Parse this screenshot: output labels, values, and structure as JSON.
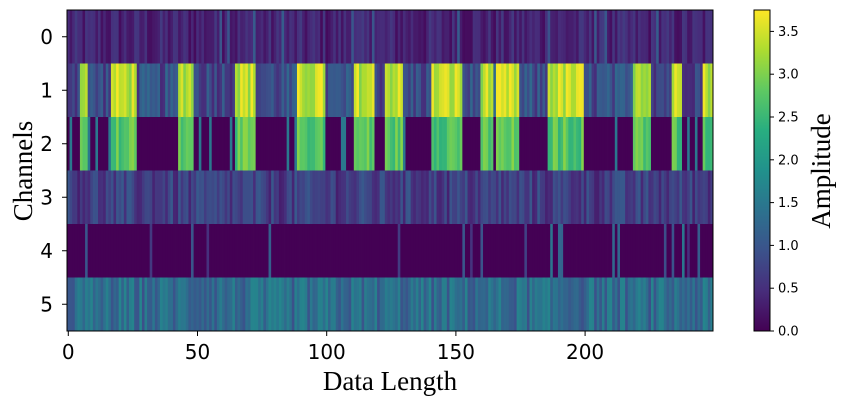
{
  "chart_data": {
    "type": "heatmap",
    "title": "",
    "xlabel": "Data Length",
    "ylabel": "Channels",
    "colorbar_label": "Amplitude",
    "colormap": "viridis",
    "xlim": [
      -0.5,
      249.5
    ],
    "x_ticks": [
      0,
      50,
      100,
      150,
      200
    ],
    "y_categories": [
      "0",
      "1",
      "2",
      "3",
      "4",
      "5"
    ],
    "color_range": [
      0.0,
      3.75
    ],
    "colorbar_ticks": [
      "0.0",
      "0.5",
      "1.0",
      "1.5",
      "2.0",
      "2.5",
      "3.0",
      "3.5"
    ],
    "n_samples": 250,
    "rows": [
      {
        "channel": "0",
        "description": "mostly 0.1-0.7 with sparse pulses near 1.0",
        "base": 0.35
      },
      {
        "channel": "1",
        "description": "alternating bursts: high amplitude 3.0-3.7 in bursts, 0.5-1.2 between",
        "bursts_high": 3.5
      },
      {
        "channel": "2",
        "description": "same burst pattern as channel 1, ~2.5-3.0 in bursts, 0.0 between",
        "bursts_high": 2.8
      },
      {
        "channel": "3",
        "description": "low noise 0.3-1.0",
        "base": 0.6
      },
      {
        "channel": "4",
        "description": "mostly 0.0 with isolated spikes up to ~1.5",
        "base": 0.0
      },
      {
        "channel": "5",
        "description": "noisy 0.9-1.7",
        "base": 1.3
      }
    ],
    "bursts": [
      [
        5,
        8
      ],
      [
        17,
        27
      ],
      [
        43,
        49
      ],
      [
        65,
        73
      ],
      [
        89,
        100
      ],
      [
        111,
        119
      ],
      [
        123,
        130
      ],
      [
        141,
        153
      ],
      [
        160,
        165
      ],
      [
        166,
        175
      ],
      [
        186,
        200
      ],
      [
        219,
        226
      ],
      [
        234,
        238
      ],
      [
        246,
        250
      ]
    ]
  }
}
